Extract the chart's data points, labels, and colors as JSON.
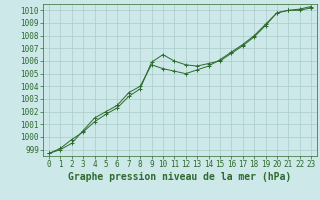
{
  "title": "Graphe pression niveau de la mer (hPa)",
  "x_labels": [
    "0",
    "1",
    "2",
    "3",
    "4",
    "5",
    "6",
    "7",
    "8",
    "9",
    "10",
    "11",
    "12",
    "13",
    "14",
    "15",
    "16",
    "17",
    "18",
    "19",
    "20",
    "21",
    "22",
    "23"
  ],
  "x_values": [
    0,
    1,
    2,
    3,
    4,
    5,
    6,
    7,
    8,
    9,
    10,
    11,
    12,
    13,
    14,
    15,
    16,
    17,
    18,
    19,
    20,
    21,
    22,
    23
  ],
  "line1": [
    998.7,
    999.1,
    999.8,
    1000.4,
    1001.2,
    1001.8,
    1002.3,
    1003.2,
    1003.8,
    1005.9,
    1006.5,
    1006.0,
    1005.7,
    1005.6,
    1005.8,
    1006.0,
    1006.6,
    1007.2,
    1007.9,
    1008.8,
    1009.8,
    1010.0,
    1010.1,
    1010.3
  ],
  "line2": [
    998.7,
    999.0,
    999.5,
    1000.5,
    1001.5,
    1002.0,
    1002.5,
    1003.5,
    1004.0,
    1005.7,
    1005.4,
    1005.2,
    1005.0,
    1005.3,
    1005.6,
    1006.1,
    1006.7,
    1007.3,
    1008.0,
    1008.9,
    1009.8,
    1010.0,
    1010.0,
    1010.2
  ],
  "line_color": "#2d6a2d",
  "bg_color": "#cce8e8",
  "grid_color": "#aacccc",
  "ylim": [
    998.5,
    1010.5
  ],
  "yticks": [
    999,
    1000,
    1001,
    1002,
    1003,
    1004,
    1005,
    1006,
    1007,
    1008,
    1009,
    1010
  ],
  "title_fontsize": 7,
  "tick_fontsize": 5.5,
  "figsize": [
    3.2,
    2.0
  ],
  "dpi": 100
}
